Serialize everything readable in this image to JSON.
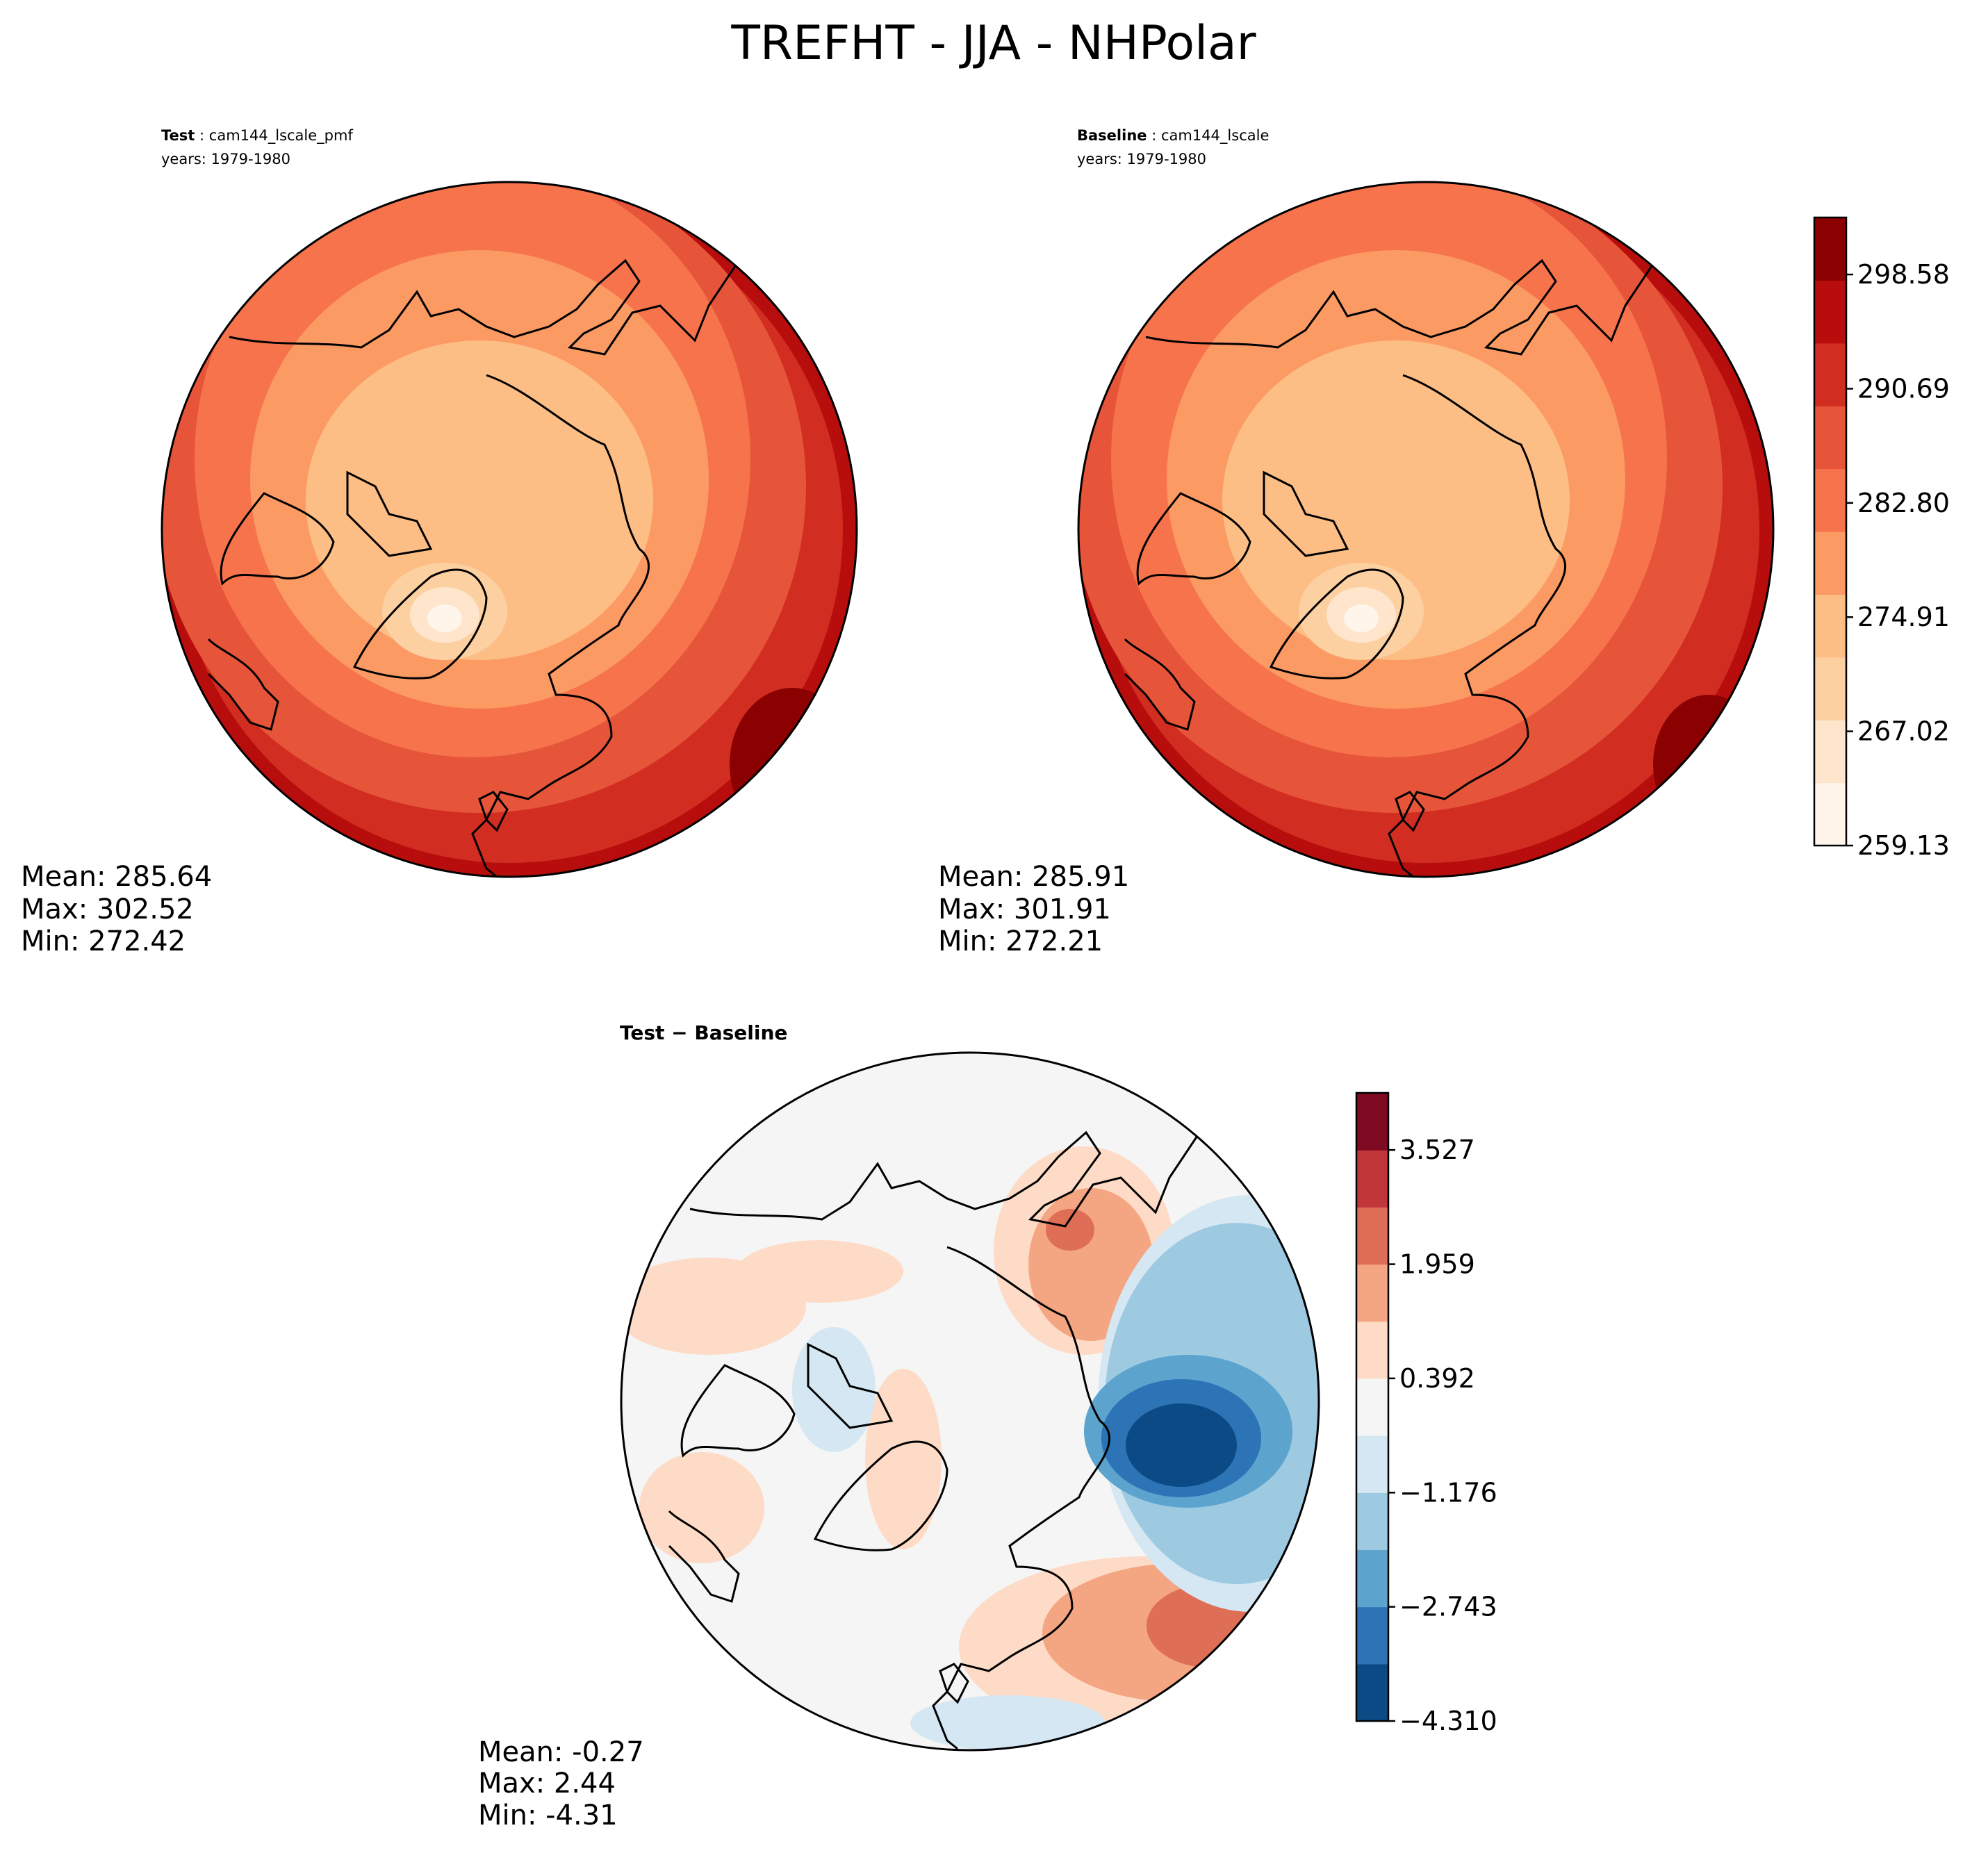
{
  "chart_data": {
    "type": "contour-map",
    "title": "TREFHT - JJA - NHPolar",
    "panels": [
      {
        "id": "test",
        "label_prefix": "Test",
        "case": "cam144_lscale_pmf",
        "years": "years: 1979-1980",
        "stats": {
          "mean": "Mean: 285.64",
          "max": "Max: 302.52",
          "min": "Min: 272.42"
        }
      },
      {
        "id": "baseline",
        "label_prefix": "Baseline",
        "case": "cam144_lscale",
        "years": "years: 1979-1980",
        "stats": {
          "mean": "Mean: 285.91",
          "max": "Max: 301.91",
          "min": "Min: 272.21"
        }
      },
      {
        "id": "difference",
        "title": "Test − Baseline",
        "stats": {
          "mean": "Mean: -0.27",
          "max": "Max:  2.44",
          "min": "Min: -4.31"
        }
      }
    ],
    "colorbars": [
      {
        "for": "test-baseline",
        "colormap": "Reds",
        "range": [
          259.13,
          302.52
        ],
        "tick_values": [
          259.13,
          267.02,
          274.91,
          282.8,
          290.69,
          298.58
        ],
        "tick_labels": [
          "259.13",
          "267.02",
          "274.91",
          "282.80",
          "290.69",
          "298.58"
        ],
        "colors": [
          "#fff5eb",
          "#fee5cb",
          "#fdd0a2",
          "#fdbe85",
          "#fc9a64",
          "#f7734c",
          "#e6553a",
          "#d12d21",
          "#b80d0d",
          "#8b0000"
        ]
      },
      {
        "for": "difference",
        "colormap": "RdBu_r",
        "range": [
          -4.31,
          4.31
        ],
        "tick_values": [
          -4.31,
          -2.743,
          -1.176,
          0.392,
          1.959,
          3.527
        ],
        "tick_labels": [
          "−4.310",
          "−2.743",
          "−1.176",
          "0.392",
          "1.959",
          "3.527"
        ],
        "colors": [
          "#0c4a85",
          "#2c74b6",
          "#5ca3cd",
          "#9ecae1",
          "#d5e7f2",
          "#f5f5f5",
          "#fddbc7",
          "#f4a582",
          "#de6f56",
          "#c13639",
          "#7e0b22"
        ]
      }
    ]
  }
}
